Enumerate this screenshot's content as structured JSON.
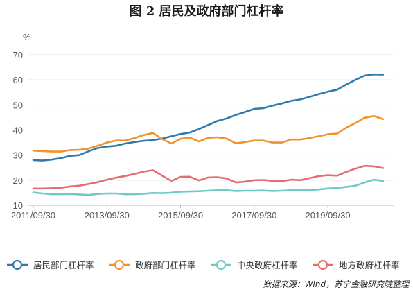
{
  "figure": {
    "title": "图 2  居民及政府部门杠杆率",
    "source": "数据来源：Wind，苏宁金融研究院整理"
  },
  "chart_data": {
    "type": "line",
    "ylabel": "%",
    "ylim": [
      10,
      70
    ],
    "yticks": [
      10,
      20,
      30,
      40,
      50,
      60,
      70
    ],
    "xticks": [
      {
        "index": 0,
        "label": "2011/09/30"
      },
      {
        "index": 8,
        "label": "2013/09/30"
      },
      {
        "index": 16,
        "label": "2015/09/30"
      },
      {
        "index": 24,
        "label": "2017/09/30"
      },
      {
        "index": 32,
        "label": "2019/09/30"
      }
    ],
    "grid": true,
    "legend_position": "bottom",
    "series": [
      {
        "name": "居民部门杠杆率",
        "color": "#2e7bab",
        "values": [
          28.0,
          27.8,
          28.2,
          28.8,
          29.7,
          30.0,
          31.5,
          32.8,
          33.4,
          33.7,
          34.6,
          35.2,
          35.7,
          36.0,
          36.6,
          37.5,
          38.4,
          39.0,
          40.4,
          42.0,
          43.6,
          44.6,
          46.0,
          47.2,
          48.4,
          48.7,
          49.7,
          50.6,
          51.6,
          52.2,
          53.2,
          54.3,
          55.3,
          56.1,
          58.1,
          60.0,
          61.7,
          62.2,
          62.1
        ]
      },
      {
        "name": "政府部门杠杆率",
        "color": "#f0932f",
        "values": [
          31.8,
          31.6,
          31.4,
          31.4,
          32.0,
          32.1,
          32.6,
          33.7,
          35.0,
          35.8,
          35.8,
          36.8,
          38.0,
          38.8,
          36.4,
          34.6,
          36.5,
          37.0,
          35.4,
          36.9,
          37.1,
          36.6,
          34.7,
          35.2,
          35.8,
          35.8,
          35.0,
          35.0,
          36.2,
          36.2,
          36.8,
          37.5,
          38.3,
          38.6,
          40.9,
          42.8,
          44.9,
          45.6,
          44.3
        ]
      },
      {
        "name": "中央政府杠杆率",
        "color": "#6fcac6",
        "values": [
          15.1,
          14.7,
          14.4,
          14.4,
          14.5,
          14.3,
          14.1,
          14.5,
          14.7,
          14.7,
          14.4,
          14.4,
          14.6,
          14.9,
          14.8,
          15.0,
          15.4,
          15.5,
          15.6,
          15.8,
          16.0,
          16.0,
          15.7,
          15.8,
          15.8,
          15.9,
          15.7,
          15.8,
          16.0,
          16.2,
          16.0,
          16.3,
          16.7,
          16.9,
          17.3,
          17.8,
          19.1,
          20.2,
          19.7
        ]
      },
      {
        "name": "地方政府杠杆率",
        "color": "#e46e6e",
        "values": [
          16.7,
          16.7,
          16.8,
          17.0,
          17.5,
          17.8,
          18.5,
          19.2,
          20.2,
          21.0,
          21.7,
          22.5,
          23.4,
          24.0,
          21.8,
          19.7,
          21.3,
          21.4,
          19.9,
          21.1,
          21.2,
          20.7,
          19.1,
          19.4,
          20.0,
          20.1,
          19.7,
          19.6,
          20.2,
          20.0,
          20.8,
          21.6,
          22.0,
          21.8,
          23.3,
          24.6,
          25.7,
          25.5,
          24.8
        ]
      }
    ]
  }
}
